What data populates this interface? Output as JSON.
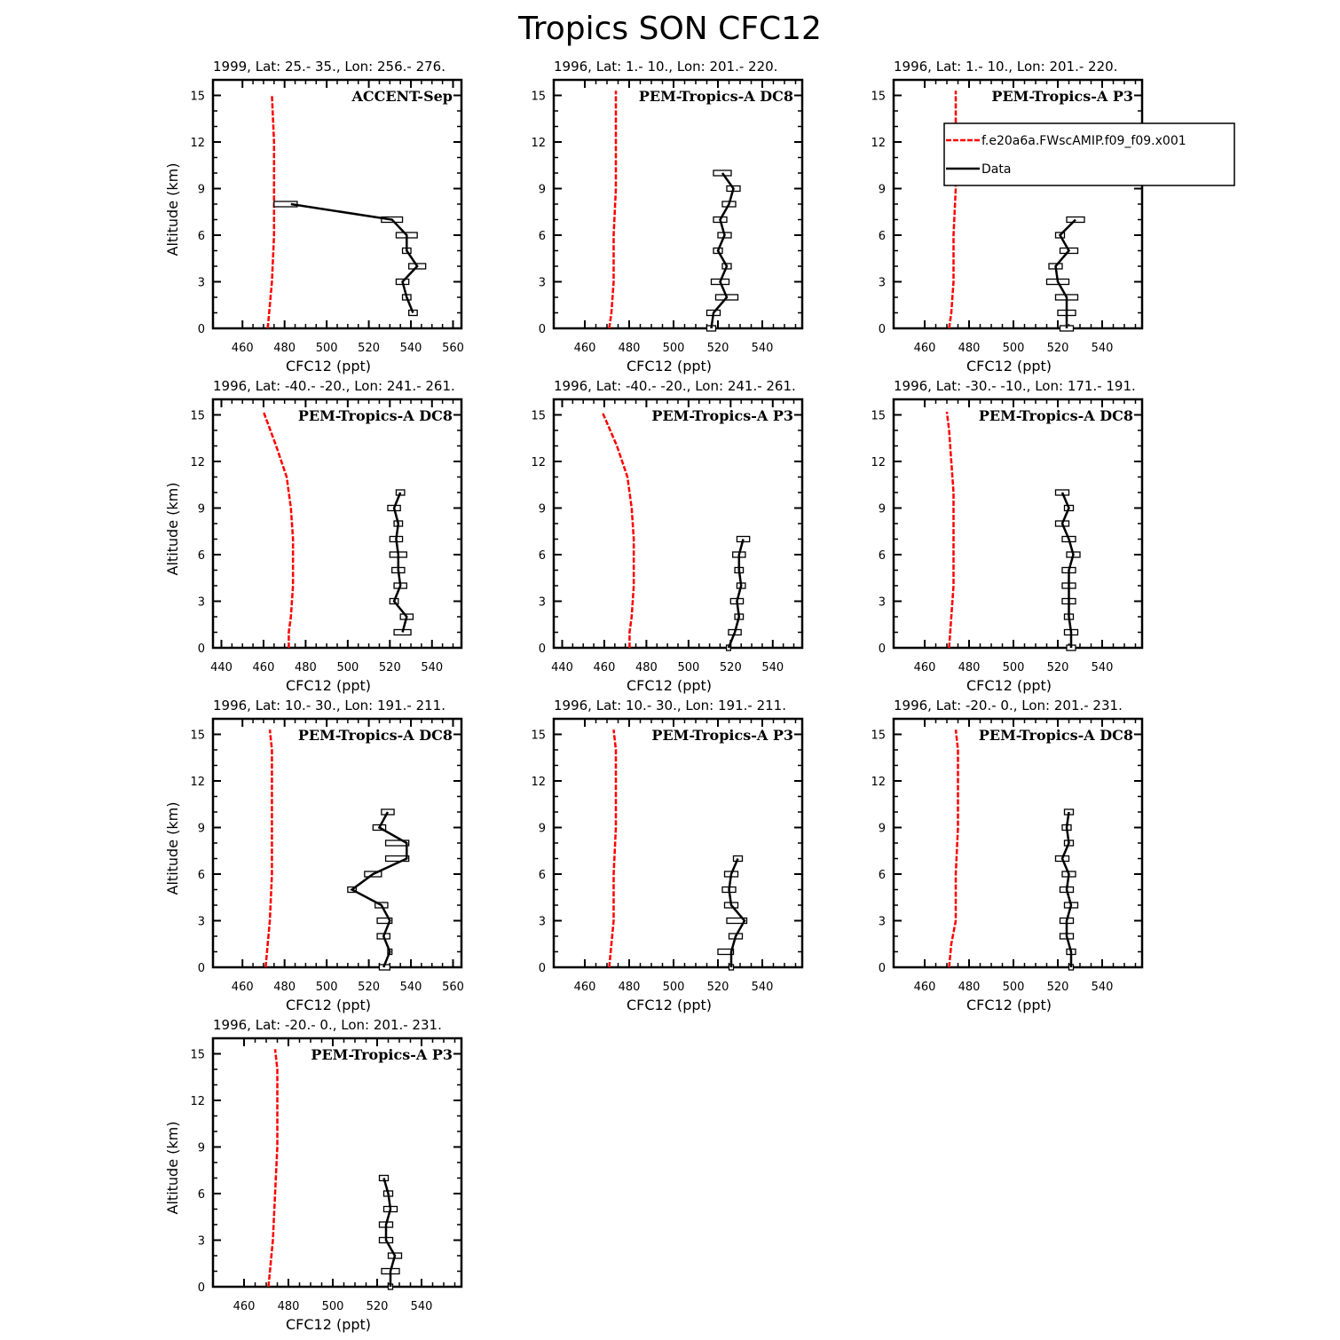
{
  "figure_title": "Tropics SON CFC12",
  "colors": {
    "model": "#ff0000",
    "data": "#000000",
    "axes": "#000000"
  },
  "legend": {
    "model_label": "f.e20a6a.FWscAMIP.f09_f09.x001",
    "data_label": "Data"
  },
  "chart_data": [
    {
      "type": "line",
      "subtitle": "1999, Lat: 25.- 35., Lon: 256.- 276.",
      "campaign": "ACCENT-Sep",
      "xlabel": "CFC12 (ppt)",
      "ylabel": "Altitude (km)",
      "xlim": [
        446,
        564
      ],
      "ylim": [
        0,
        16
      ],
      "xticks": [
        460,
        480,
        500,
        520,
        540,
        560
      ],
      "yticks": [
        0,
        3,
        6,
        9,
        12,
        15
      ],
      "model": {
        "x": [
          472,
          473,
          474,
          475,
          475,
          475,
          475,
          474
        ],
        "y": [
          0,
          1.5,
          3,
          6,
          8,
          10,
          12,
          15
        ]
      },
      "data": {
        "alt": [
          1,
          2,
          3,
          4,
          5,
          6,
          7,
          8
        ],
        "val": [
          541,
          538,
          536,
          543,
          538,
          538,
          531,
          483
        ],
        "lo": [
          539,
          536,
          533,
          539,
          536,
          533,
          526,
          475
        ],
        "hi": [
          543,
          540,
          539,
          547,
          540,
          543,
          536,
          486
        ]
      }
    },
    {
      "type": "line",
      "subtitle": "1996, Lat: 1.- 10., Lon: 201.- 220.",
      "campaign": "PEM-Tropics-A DC8",
      "xlabel": "CFC12 (ppt)",
      "ylabel": "",
      "xlim": [
        446,
        558
      ],
      "ylim": [
        0,
        16
      ],
      "xticks": [
        460,
        480,
        500,
        520,
        540
      ],
      "yticks": [
        0,
        3,
        6,
        9,
        12,
        15
      ],
      "model": {
        "x": [
          471,
          472,
          473,
          473,
          474,
          474,
          474,
          474
        ],
        "y": [
          0,
          1,
          3,
          6,
          9,
          12,
          14,
          15.3
        ]
      },
      "data": {
        "alt": [
          0,
          1,
          2,
          3,
          4,
          5,
          6,
          7,
          8,
          9,
          10
        ],
        "val": [
          517,
          518,
          524,
          521,
          524,
          520,
          523,
          521,
          525,
          527,
          522
        ],
        "lo": [
          515,
          515,
          519,
          517,
          522,
          518,
          520,
          518,
          522,
          524,
          518
        ],
        "hi": [
          519,
          521,
          529,
          525,
          526,
          522,
          526,
          524,
          528,
          530,
          526
        ]
      }
    },
    {
      "type": "line",
      "subtitle": "1996, Lat: 1.- 10., Lon: 201.- 220.",
      "campaign": "PEM-Tropics-A P3",
      "xlabel": "CFC12 (ppt)",
      "ylabel": "",
      "xlim": [
        446,
        558
      ],
      "ylim": [
        0,
        16
      ],
      "xticks": [
        460,
        480,
        500,
        520,
        540
      ],
      "yticks": [
        0,
        3,
        6,
        9,
        12,
        15
      ],
      "model": {
        "x": [
          471,
          472,
          473,
          473,
          474,
          474,
          474,
          474
        ],
        "y": [
          0,
          1,
          3,
          6,
          9,
          12,
          14,
          15.3
        ]
      },
      "data": {
        "alt": [
          0,
          1,
          2,
          3,
          4,
          5,
          6,
          7
        ],
        "val": [
          524,
          524,
          524,
          520,
          519,
          525,
          521,
          528
        ],
        "lo": [
          521,
          520,
          519,
          515,
          516,
          521,
          519,
          524
        ],
        "hi": [
          527,
          528,
          529,
          525,
          522,
          529,
          523,
          532
        ]
      }
    },
    {
      "type": "line",
      "subtitle": "1996, Lat: -40.- -20., Lon: 241.- 261.",
      "campaign": "PEM-Tropics-A DC8",
      "xlabel": "CFC12 (ppt)",
      "ylabel": "Altitude (km)",
      "xlim": [
        436,
        554
      ],
      "ylim": [
        0,
        16
      ],
      "xticks": [
        440,
        460,
        480,
        500,
        520,
        540
      ],
      "yticks": [
        0,
        3,
        6,
        9,
        12,
        15
      ],
      "model": {
        "x": [
          472,
          472,
          473,
          474,
          474,
          473,
          471,
          466,
          460
        ],
        "y": [
          0,
          1,
          2,
          4,
          7,
          9,
          11,
          13,
          15.2
        ]
      },
      "data": {
        "alt": [
          1,
          2,
          3,
          4,
          5,
          6,
          7,
          8,
          9,
          10
        ],
        "val": [
          526,
          528,
          522,
          525,
          524,
          524,
          523,
          524,
          522,
          525
        ],
        "lo": [
          522,
          525,
          520,
          522,
          521,
          520,
          520,
          522,
          519,
          523
        ],
        "hi": [
          530,
          531,
          524,
          528,
          527,
          528,
          526,
          526,
          525,
          527
        ]
      }
    },
    {
      "type": "line",
      "subtitle": "1996, Lat: -40.- -20., Lon: 241.- 261.",
      "campaign": "PEM-Tropics-A P3",
      "xlabel": "CFC12 (ppt)",
      "ylabel": "",
      "xlim": [
        436,
        554
      ],
      "ylim": [
        0,
        16
      ],
      "xticks": [
        440,
        460,
        480,
        500,
        520,
        540
      ],
      "yticks": [
        0,
        3,
        6,
        9,
        12,
        15
      ],
      "model": {
        "x": [
          472,
          472,
          473,
          474,
          474,
          473,
          471,
          466,
          459
        ],
        "y": [
          0,
          1,
          2,
          4,
          7,
          9,
          11,
          13,
          15.2
        ]
      },
      "data": {
        "alt": [
          0,
          1,
          2,
          3,
          4,
          5,
          6,
          7
        ],
        "val": [
          519,
          522,
          524,
          523,
          525,
          524,
          524,
          526
        ],
        "lo": [
          518,
          519,
          522,
          520,
          523,
          522,
          521,
          523
        ],
        "hi": [
          520,
          525,
          526,
          526,
          527,
          526,
          527,
          529
        ]
      }
    },
    {
      "type": "line",
      "subtitle": "1996, Lat: -30.- -10., Lon: 171.- 191.",
      "campaign": "PEM-Tropics-A DC8",
      "xlabel": "CFC12 (ppt)",
      "ylabel": "",
      "xlim": [
        446,
        558
      ],
      "ylim": [
        0,
        16
      ],
      "xticks": [
        460,
        480,
        500,
        520,
        540
      ],
      "yticks": [
        0,
        3,
        6,
        9,
        12,
        15
      ],
      "model": {
        "x": [
          471,
          472,
          473,
          473,
          473,
          472,
          471,
          470
        ],
        "y": [
          0,
          2,
          4,
          7,
          10,
          12,
          14,
          15.2
        ]
      },
      "data": {
        "alt": [
          0,
          1,
          2,
          3,
          4,
          5,
          6,
          7,
          8,
          9,
          10
        ],
        "val": [
          526,
          526,
          525,
          525,
          525,
          525,
          527,
          525,
          522,
          525,
          522
        ],
        "lo": [
          524,
          523,
          523,
          522,
          522,
          522,
          524,
          522,
          519,
          523,
          519
        ],
        "hi": [
          528,
          529,
          527,
          528,
          528,
          528,
          530,
          528,
          525,
          527,
          525
        ]
      }
    },
    {
      "type": "line",
      "subtitle": "1996, Lat: 10.- 30., Lon: 191.- 211.",
      "campaign": "PEM-Tropics-A DC8",
      "xlabel": "CFC12 (ppt)",
      "ylabel": "Altitude (km)",
      "xlim": [
        446,
        564
      ],
      "ylim": [
        0,
        16
      ],
      "xticks": [
        460,
        480,
        500,
        520,
        540,
        560
      ],
      "yticks": [
        0,
        3,
        6,
        9,
        12,
        15
      ],
      "model": {
        "x": [
          471,
          472,
          473,
          474,
          474,
          474,
          474,
          473
        ],
        "y": [
          0,
          1.5,
          3,
          6,
          9,
          12,
          14,
          15.3
        ]
      },
      "data": {
        "alt": [
          0,
          1,
          2,
          3,
          4,
          5,
          6,
          7,
          8,
          9,
          10
        ],
        "val": [
          527,
          530,
          527,
          530,
          526,
          512,
          522,
          538,
          538,
          525,
          529
        ],
        "lo": [
          525,
          529,
          524,
          524,
          523,
          510,
          518,
          528,
          528,
          522,
          526
        ],
        "hi": [
          530,
          531,
          530,
          531,
          529,
          514,
          526,
          539,
          539,
          528,
          532
        ]
      }
    },
    {
      "type": "line",
      "subtitle": "1996, Lat: 10.- 30., Lon: 191.- 211.",
      "campaign": "PEM-Tropics-A P3",
      "xlabel": "CFC12 (ppt)",
      "ylabel": "",
      "xlim": [
        446,
        558
      ],
      "ylim": [
        0,
        16
      ],
      "xticks": [
        460,
        480,
        500,
        520,
        540
      ],
      "yticks": [
        0,
        3,
        6,
        9,
        12,
        15
      ],
      "model": {
        "x": [
          471,
          472,
          473,
          473,
          474,
          474,
          474,
          473
        ],
        "y": [
          0,
          1.5,
          3,
          6,
          9,
          12,
          14,
          15.3
        ]
      },
      "data": {
        "alt": [
          0,
          1,
          2,
          3,
          4,
          5,
          6,
          7
        ],
        "val": [
          526,
          526,
          528,
          532,
          526,
          525,
          526,
          529
        ],
        "lo": [
          525,
          520,
          525,
          524,
          523,
          522,
          523,
          527
        ],
        "hi": [
          527,
          527,
          531,
          533,
          529,
          528,
          529,
          531
        ]
      }
    },
    {
      "type": "line",
      "subtitle": "1996, Lat: -20.- 0., Lon: 201.- 231.",
      "campaign": "PEM-Tropics-A DC8",
      "xlabel": "CFC12 (ppt)",
      "ylabel": "",
      "xlim": [
        446,
        558
      ],
      "ylim": [
        0,
        16
      ],
      "xticks": [
        460,
        480,
        500,
        520,
        540
      ],
      "yticks": [
        0,
        3,
        6,
        9,
        12,
        15
      ],
      "model": {
        "x": [
          471,
          472,
          474,
          474,
          475,
          475,
          475,
          474
        ],
        "y": [
          0,
          1.5,
          3,
          6,
          9,
          12,
          14,
          15.3
        ]
      },
      "data": {
        "alt": [
          0,
          1,
          2,
          3,
          4,
          5,
          6,
          7,
          8,
          9,
          10
        ],
        "val": [
          526,
          526,
          524,
          524,
          526,
          524,
          525,
          522,
          525,
          524,
          525
        ],
        "lo": [
          525,
          524,
          521,
          521,
          523,
          521,
          522,
          519,
          523,
          522,
          523
        ],
        "hi": [
          527,
          528,
          527,
          527,
          529,
          527,
          528,
          525,
          527,
          526,
          527
        ]
      }
    },
    {
      "type": "line",
      "subtitle": "1996, Lat: -20.- 0., Lon: 201.- 231.",
      "campaign": "PEM-Tropics-A P3",
      "xlabel": "CFC12 (ppt)",
      "ylabel": "Altitude (km)",
      "xlim": [
        446,
        558
      ],
      "ylim": [
        0,
        16
      ],
      "xticks": [
        460,
        480,
        500,
        520,
        540
      ],
      "yticks": [
        0,
        3,
        6,
        9,
        12,
        15
      ],
      "model": {
        "x": [
          471,
          472,
          473,
          474,
          475,
          475,
          475,
          474
        ],
        "y": [
          0,
          1.5,
          3,
          6,
          9,
          12,
          14,
          15.3
        ]
      },
      "data": {
        "alt": [
          0,
          1,
          2,
          3,
          4,
          5,
          6,
          7
        ],
        "val": [
          526,
          526,
          528,
          524,
          524,
          526,
          525,
          523
        ],
        "lo": [
          525,
          522,
          525,
          521,
          521,
          523,
          523,
          521
        ],
        "hi": [
          527,
          530,
          531,
          527,
          527,
          529,
          527,
          525
        ]
      }
    }
  ]
}
